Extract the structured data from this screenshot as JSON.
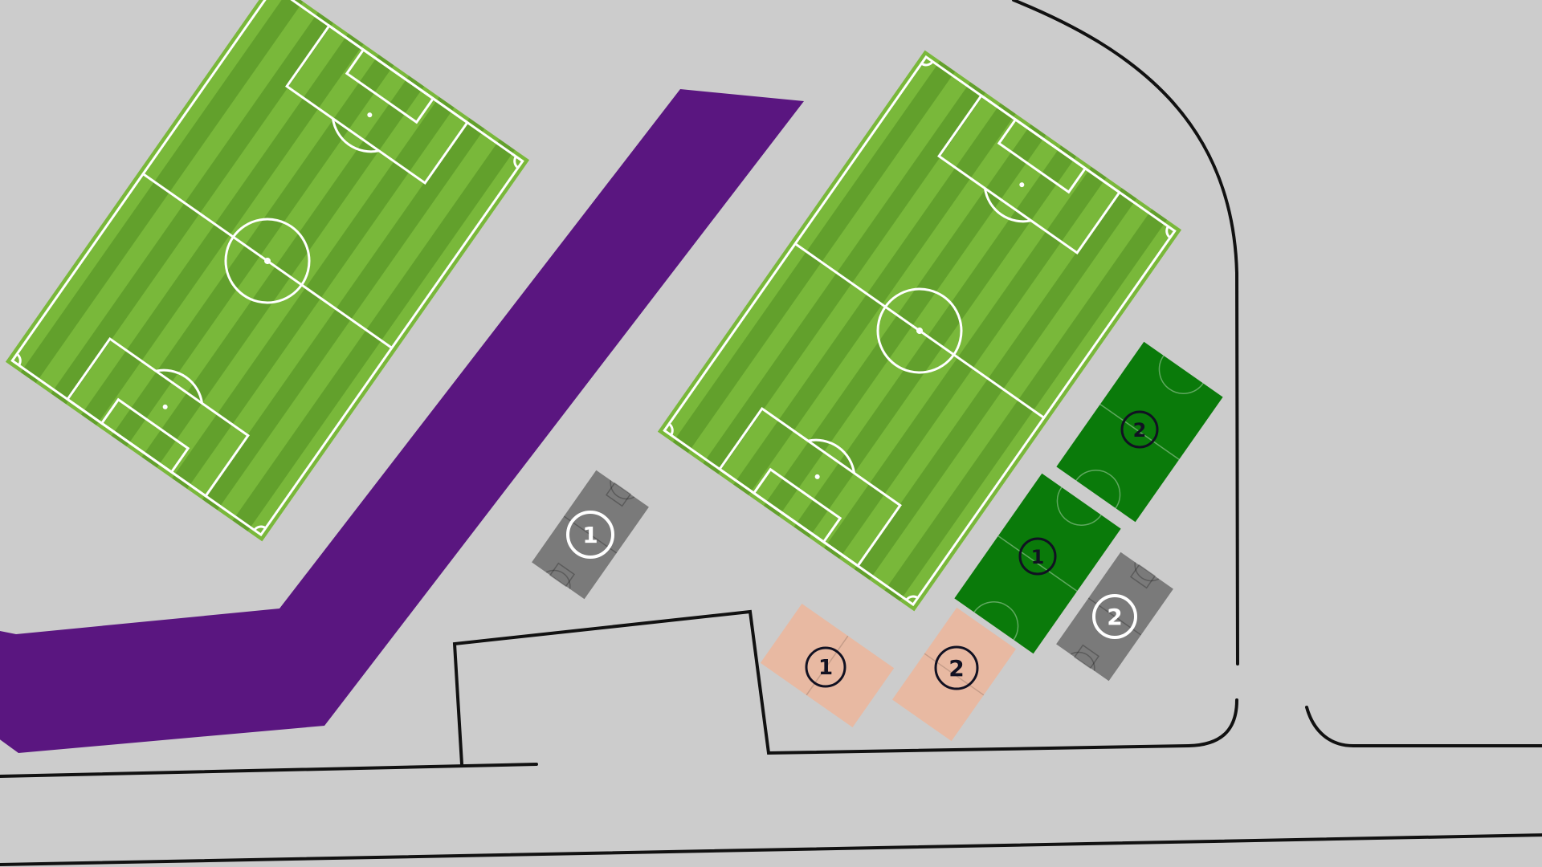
{
  "map": {
    "background": "#cccccc",
    "road_color": "#5a1680",
    "line_color": "#111111",
    "pitch_light": "#79b83a",
    "pitch_dark": "#62a02c",
    "pitch_line": "#ffffff",
    "fields": [
      {
        "id": "field-west"
      },
      {
        "id": "field-east"
      }
    ],
    "basketball_courts": [
      {
        "label": "1",
        "color": "#7a7a7a",
        "badge_style": "white"
      },
      {
        "label": "2",
        "color": "#7a7a7a",
        "badge_style": "white"
      }
    ],
    "futsal_courts": [
      {
        "label": "1",
        "color": "#0a7a0a",
        "badge_style": "dark"
      },
      {
        "label": "2",
        "color": "#0a7a0a",
        "badge_style": "dark"
      }
    ],
    "tennis_courts": [
      {
        "label": "1",
        "color": "#e8b9a2",
        "badge_style": "dark"
      },
      {
        "label": "2",
        "color": "#e8b9a2",
        "badge_style": "dark"
      }
    ]
  }
}
